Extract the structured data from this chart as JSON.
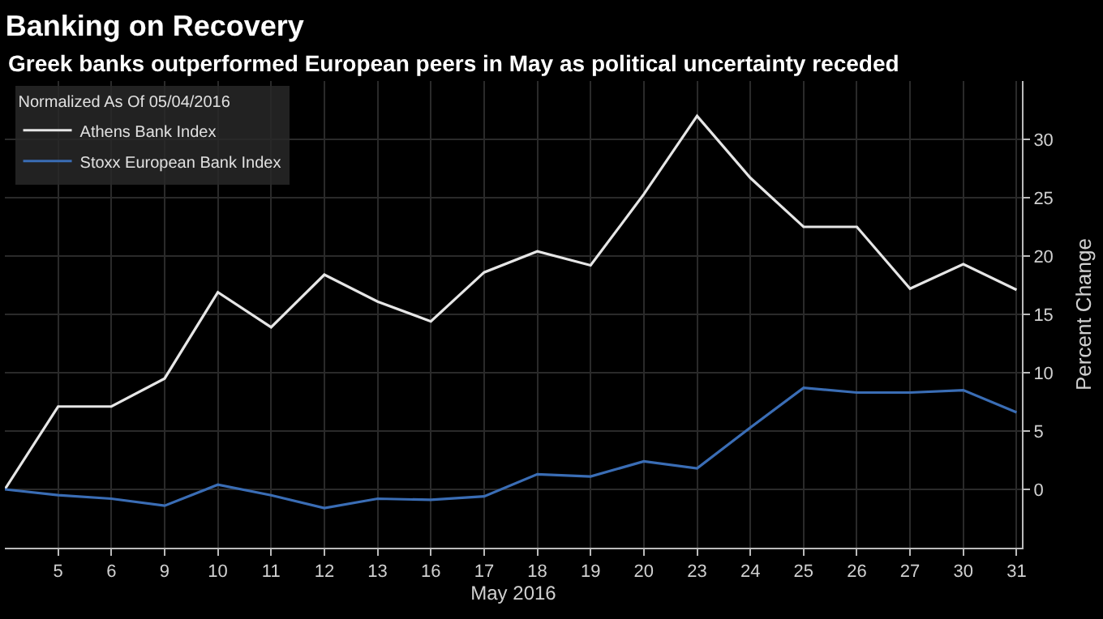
{
  "chart_data": {
    "type": "line",
    "title": "Banking on Recovery",
    "subtitle": "Greek banks outperformed European peers in May as political uncertainty receded",
    "categories": [
      null,
      "5",
      "6",
      "9",
      "10",
      "11",
      "12",
      "13",
      "16",
      "17",
      "18",
      "19",
      "20",
      "23",
      "24",
      "25",
      "26",
      "27",
      "30",
      "31"
    ],
    "series": [
      {
        "name": "Athens Bank Index",
        "color": "#e6e6e6",
        "values": [
          0,
          7.1,
          7.1,
          9.5,
          16.9,
          13.9,
          18.4,
          16.1,
          14.4,
          18.6,
          20.4,
          19.2,
          25.3,
          32.0,
          26.7,
          22.5,
          22.5,
          17.2,
          19.3,
          17.1
        ]
      },
      {
        "name": "Stoxx European Bank Index",
        "color": "#3a6db5",
        "values": [
          0,
          -0.5,
          -0.8,
          -1.4,
          0.4,
          -0.5,
          -1.6,
          -0.8,
          -0.9,
          -0.6,
          1.3,
          1.1,
          2.4,
          1.8,
          5.3,
          8.7,
          8.3,
          8.3,
          8.5,
          6.6
        ]
      }
    ],
    "xlabel": "May 2016",
    "ylabel": "Percent Change",
    "legend_title": "Normalized As Of 05/04/2016",
    "ylim": [
      -5,
      35
    ],
    "yticks": [
      0,
      5,
      10,
      15,
      20,
      25,
      30
    ],
    "grid": true,
    "legend": "top left"
  }
}
